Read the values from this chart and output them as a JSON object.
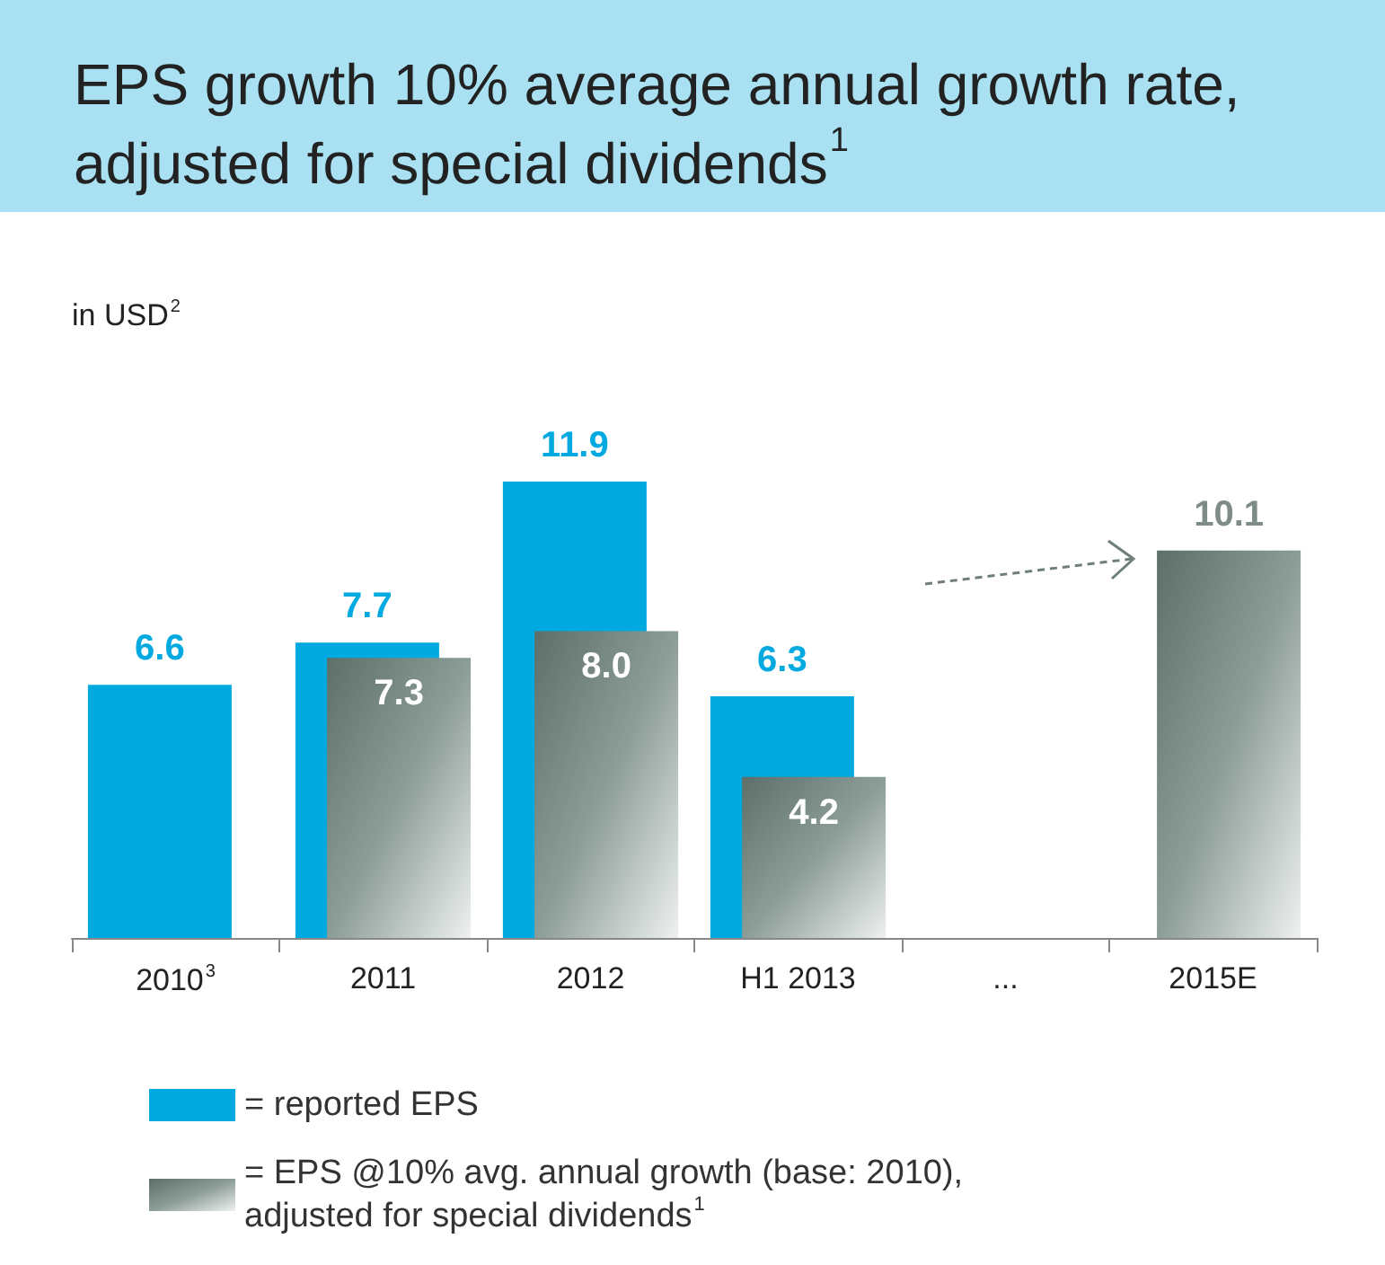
{
  "chart_data": {
    "type": "bar",
    "title": "EPS growth 10% average annual growth rate, adjusted for special dividends$^{1}$",
    "ylabel": "in USD$^{2}$",
    "categories": [
      "2010$^{3}$",
      "2011",
      "2012",
      "H1 2013",
      "...",
      "2015E"
    ],
    "series": [
      {
        "name": "= reported EPS",
        "color": "#00a9e0",
        "values": [
          6.6,
          7.7,
          11.9,
          6.3,
          null,
          null
        ],
        "value_labels": [
          "6.6",
          "7.7",
          "11.9",
          "6.3",
          null,
          null
        ]
      },
      {
        "name": "= EPS @10% avg. annual growth (base: 2010), adjusted for special dividends$^{1}$",
        "color": "#8c9c97",
        "values": [
          null,
          7.3,
          8.0,
          4.2,
          null,
          10.1
        ],
        "value_labels": [
          null,
          "7.3",
          "8.0",
          "4.2",
          null,
          "10.1"
        ]
      }
    ],
    "legend": "bottom"
  }
}
